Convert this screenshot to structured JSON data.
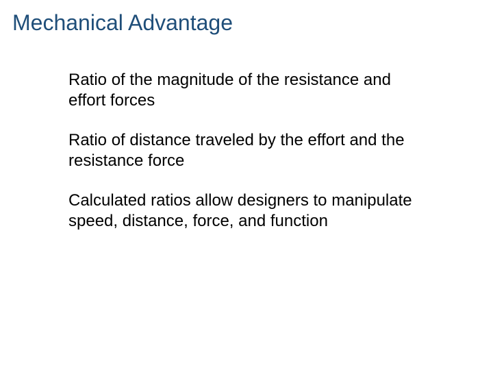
{
  "slide": {
    "title": "Mechanical Advantage",
    "points": [
      "Ratio of the magnitude of the resistance and effort forces",
      "Ratio of distance traveled by the effort and the resistance force",
      "Calculated ratios allow designers to manipulate speed, distance, force, and function"
    ]
  },
  "styling": {
    "title_color": "#1f4e79",
    "body_text_color": "#000000",
    "background_color": "#ffffff",
    "title_fontsize": 32,
    "body_fontsize": 24,
    "font_family": "Arial"
  }
}
